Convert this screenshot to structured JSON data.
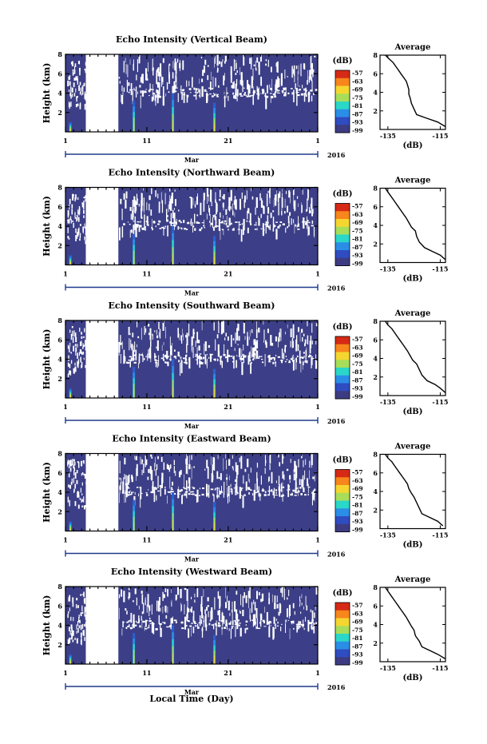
{
  "figure": {
    "xlabel": "Local Time (Day)",
    "month_label": "Mar",
    "year_label": "2016",
    "x_tick_labels": [
      "1",
      "11",
      "21",
      "1"
    ]
  },
  "chart_data": [
    {
      "type": "heatmap",
      "title": "Echo Intensity (Vertical Beam)",
      "ylabel": "Height (km)",
      "xlim": [
        1,
        32
      ],
      "ylim": [
        0,
        8
      ],
      "x_tick_labels": [
        "1",
        "11",
        "21",
        "1"
      ],
      "y_tick_labels": [
        "2",
        "4",
        "6",
        "8"
      ],
      "data_gap_days": [
        3.5,
        7.5
      ],
      "colorbar": {
        "title": "(dB)",
        "labels": [
          "-57",
          "-63",
          "-69",
          "-75",
          "-81",
          "-87",
          "-93",
          "-99"
        ],
        "colors": [
          "#d62a16",
          "#f7861c",
          "#f5d630",
          "#a8dd5a",
          "#2ad7c8",
          "#2b8ee6",
          "#2f4cc1",
          "#3d3c82"
        ]
      },
      "profile": {
        "title": "Average",
        "xlabel": "(dB)",
        "x_tick_labels": [
          "-135",
          "-115"
        ],
        "y_tick_labels": [
          "2",
          "4",
          "6",
          "8"
        ],
        "xlim": [
          -138,
          -113
        ],
        "ylim": [
          0,
          8
        ],
        "x": [
          -113,
          -116,
          -120,
          -124,
          -125,
          -126,
          -126.5,
          -127,
          -127,
          -127.5,
          -128,
          -129,
          -130,
          -131,
          -132,
          -133,
          -134.5,
          -136
        ],
        "y": [
          0.3,
          0.8,
          1.2,
          1.6,
          2.2,
          2.8,
          3.4,
          3.8,
          4.3,
          4.8,
          5.2,
          5.6,
          6.0,
          6.4,
          6.8,
          7.2,
          7.6,
          8.0
        ]
      }
    },
    {
      "type": "heatmap",
      "title": "Echo Intensity (Northward Beam)",
      "ylabel": "Height (km)",
      "xlim": [
        1,
        32
      ],
      "ylim": [
        0,
        8
      ],
      "x_tick_labels": [
        "1",
        "11",
        "21",
        "1"
      ],
      "y_tick_labels": [
        "2",
        "4",
        "6",
        "8"
      ],
      "data_gap_days": [
        3.5,
        7.5
      ],
      "colorbar": {
        "title": "(dB)",
        "labels": [
          "-57",
          "-63",
          "-69",
          "-75",
          "-81",
          "-87",
          "-93",
          "-99"
        ],
        "colors": [
          "#d62a16",
          "#f7861c",
          "#f5d630",
          "#a8dd5a",
          "#2ad7c8",
          "#2b8ee6",
          "#2f4cc1",
          "#3d3c82"
        ]
      },
      "profile": {
        "title": "Average",
        "xlabel": "(dB)",
        "x_tick_labels": [
          "-135",
          "-115"
        ],
        "y_tick_labels": [
          "2",
          "4",
          "6",
          "8"
        ],
        "xlim": [
          -138,
          -113
        ],
        "ylim": [
          0,
          8
        ],
        "x": [
          -113,
          -115,
          -118,
          -121,
          -123,
          -124,
          -124.5,
          -126,
          -127,
          -128,
          -129,
          -130,
          -131,
          -132,
          -133,
          -134,
          -135,
          -136
        ],
        "y": [
          0.3,
          0.8,
          1.2,
          1.6,
          2.2,
          2.8,
          3.4,
          3.8,
          4.3,
          4.8,
          5.2,
          5.6,
          6.0,
          6.4,
          6.8,
          7.2,
          7.6,
          8.0
        ]
      }
    },
    {
      "type": "heatmap",
      "title": "Echo Intensity (Southward Beam)",
      "ylabel": "Height (km)",
      "xlim": [
        1,
        32
      ],
      "ylim": [
        0,
        8
      ],
      "x_tick_labels": [
        "1",
        "11",
        "21",
        "1"
      ],
      "y_tick_labels": [
        "2",
        "4",
        "6",
        "8"
      ],
      "data_gap_days": [
        3.5,
        7.5
      ],
      "colorbar": {
        "title": "(dB)",
        "labels": [
          "-57",
          "-63",
          "-69",
          "-75",
          "-81",
          "-87",
          "-93",
          "-99"
        ],
        "colors": [
          "#d62a16",
          "#f7861c",
          "#f5d630",
          "#a8dd5a",
          "#2ad7c8",
          "#2b8ee6",
          "#2f4cc1",
          "#3d3c82"
        ]
      },
      "profile": {
        "title": "Average",
        "xlabel": "(dB)",
        "x_tick_labels": [
          "-135",
          "-115"
        ],
        "y_tick_labels": [
          "2",
          "4",
          "6",
          "8"
        ],
        "xlim": [
          -138,
          -113
        ],
        "ylim": [
          0,
          8
        ],
        "x": [
          -113,
          -115,
          -117,
          -120,
          -122,
          -123,
          -124,
          -125.5,
          -126.5,
          -127.5,
          -128.5,
          -129.5,
          -130.5,
          -131.5,
          -132.5,
          -133.5,
          -135,
          -136
        ],
        "y": [
          0.3,
          0.8,
          1.2,
          1.6,
          2.2,
          2.8,
          3.4,
          3.8,
          4.3,
          4.8,
          5.2,
          5.6,
          6.0,
          6.4,
          6.8,
          7.2,
          7.6,
          8.0
        ]
      }
    },
    {
      "type": "heatmap",
      "title": "Echo Intensity (Eastward Beam)",
      "ylabel": "Height (km)",
      "xlim": [
        1,
        32
      ],
      "ylim": [
        0,
        8
      ],
      "x_tick_labels": [
        "1",
        "11",
        "21",
        "1"
      ],
      "y_tick_labels": [
        "2",
        "4",
        "6",
        "8"
      ],
      "data_gap_days": [
        3.5,
        7.5
      ],
      "colorbar": {
        "title": "(dB)",
        "labels": [
          "-57",
          "-63",
          "-69",
          "-75",
          "-81",
          "-87",
          "-93",
          "-99"
        ],
        "colors": [
          "#d62a16",
          "#f7861c",
          "#f5d630",
          "#a8dd5a",
          "#2ad7c8",
          "#2b8ee6",
          "#2f4cc1",
          "#3d3c82"
        ]
      },
      "profile": {
        "title": "Average",
        "xlabel": "(dB)",
        "x_tick_labels": [
          "-135",
          "-115"
        ],
        "y_tick_labels": [
          "2",
          "4",
          "6",
          "8"
        ],
        "xlim": [
          -138,
          -113
        ],
        "ylim": [
          0,
          8
        ],
        "x": [
          -114,
          -116,
          -119,
          -122,
          -123,
          -124,
          -125,
          -126,
          -127,
          -127.5,
          -128.5,
          -129.5,
          -130.5,
          -131.5,
          -132.5,
          -133.5,
          -135,
          -136
        ],
        "y": [
          0.3,
          0.8,
          1.2,
          1.6,
          2.2,
          2.8,
          3.4,
          3.8,
          4.3,
          4.8,
          5.2,
          5.6,
          6.0,
          6.4,
          6.8,
          7.2,
          7.6,
          8.0
        ]
      }
    },
    {
      "type": "heatmap",
      "title": "Echo Intensity (Westward Beam)",
      "ylabel": "Height (km)",
      "xlim": [
        1,
        32
      ],
      "ylim": [
        0,
        8
      ],
      "x_tick_labels": [
        "1",
        "11",
        "21",
        "1"
      ],
      "y_tick_labels": [
        "2",
        "4",
        "6",
        "8"
      ],
      "data_gap_days": [
        3.5,
        7.5
      ],
      "colorbar": {
        "title": "(dB)",
        "labels": [
          "-57",
          "-63",
          "-69",
          "-75",
          "-81",
          "-87",
          "-93",
          "-99"
        ],
        "colors": [
          "#d62a16",
          "#f7861c",
          "#f5d630",
          "#a8dd5a",
          "#2ad7c8",
          "#2b8ee6",
          "#2f4cc1",
          "#3d3c82"
        ]
      },
      "profile": {
        "title": "Average",
        "xlabel": "(dB)",
        "x_tick_labels": [
          "-135",
          "-115"
        ],
        "y_tick_labels": [
          "2",
          "4",
          "6",
          "8"
        ],
        "xlim": [
          -138,
          -113
        ],
        "ylim": [
          0,
          8
        ],
        "x": [
          -113,
          -116,
          -119,
          -122,
          -123,
          -124.5,
          -125,
          -126,
          -127,
          -128,
          -129,
          -130,
          -131,
          -132,
          -133,
          -134,
          -135,
          -136
        ],
        "y": [
          0.3,
          0.8,
          1.2,
          1.6,
          2.2,
          2.8,
          3.4,
          3.8,
          4.3,
          4.8,
          5.2,
          5.6,
          6.0,
          6.4,
          6.8,
          7.2,
          7.6,
          8.0
        ]
      }
    }
  ]
}
